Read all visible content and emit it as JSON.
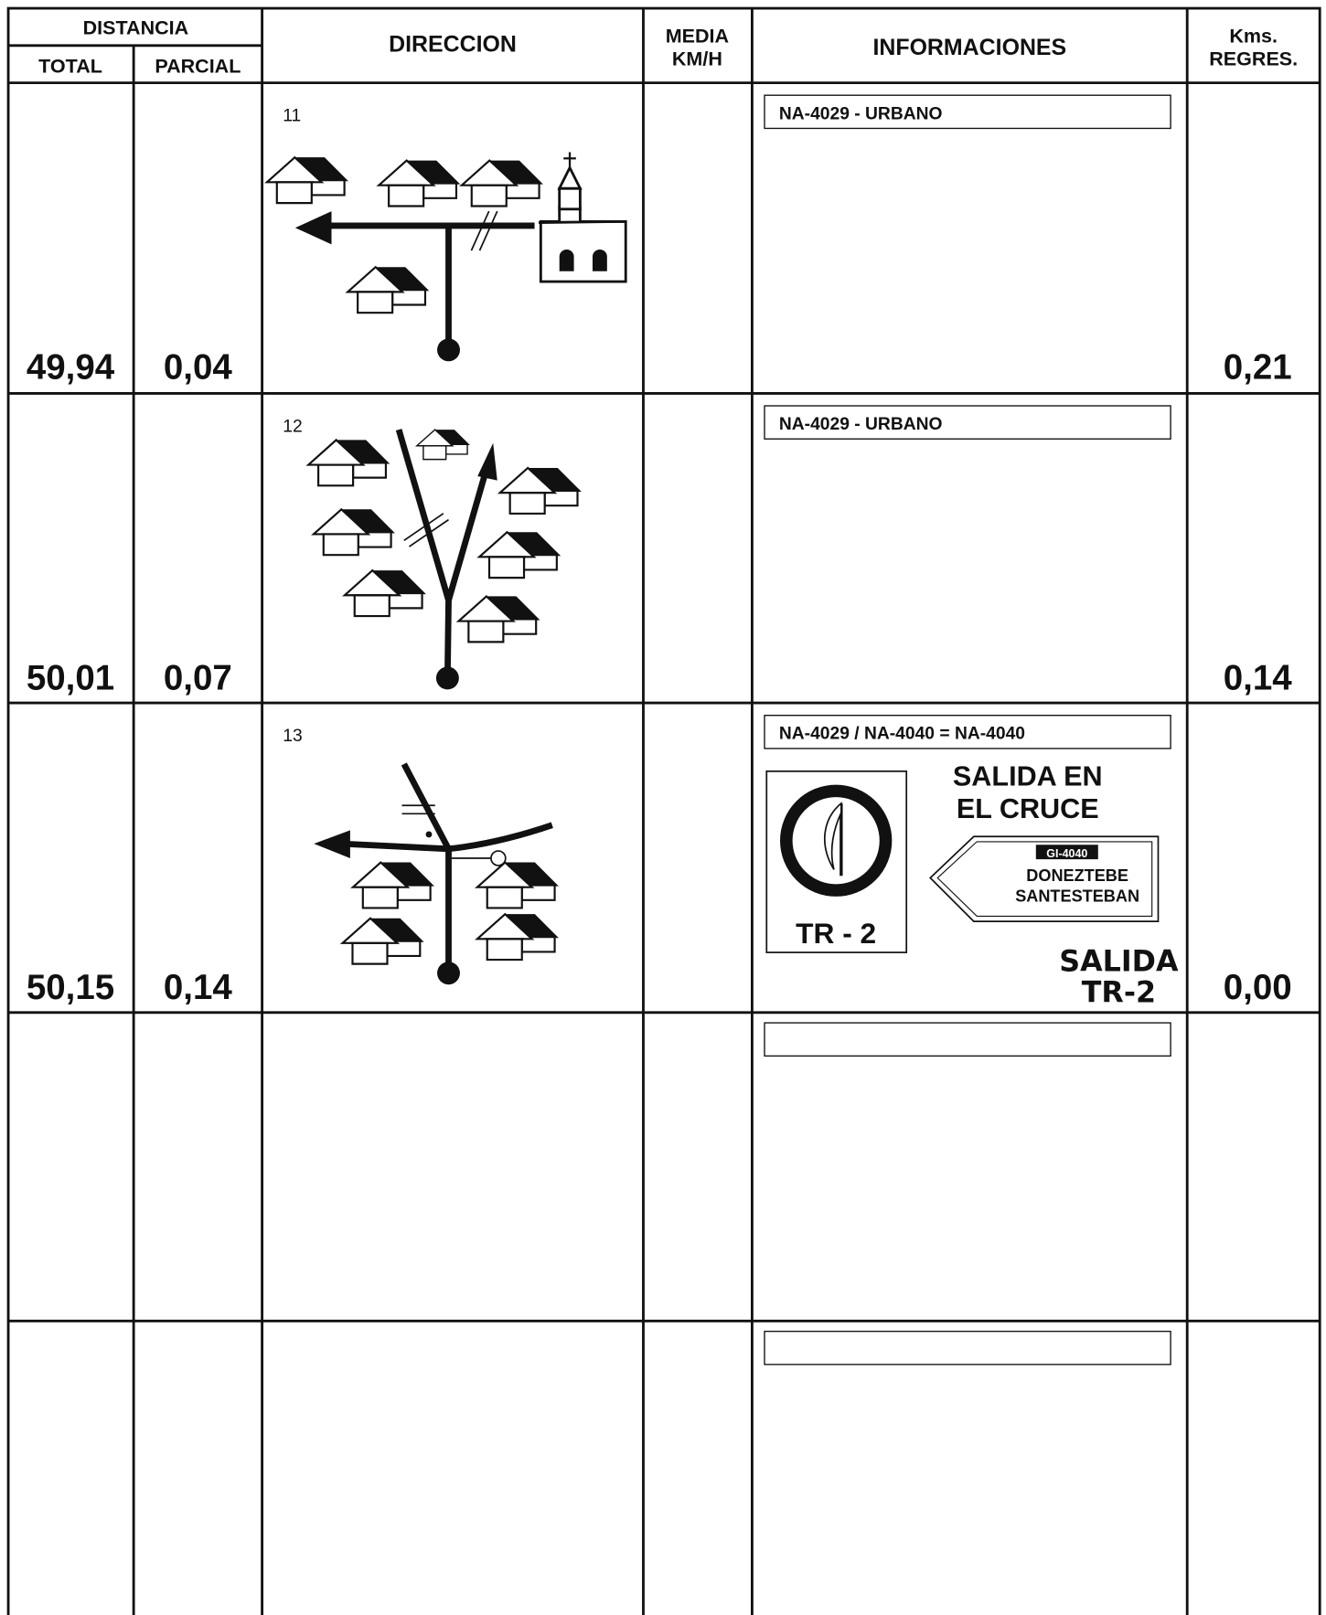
{
  "header": {
    "distancia": "DISTANCIA",
    "total": "TOTAL",
    "parcial": "PARCIAL",
    "direccion": "DIRECCION",
    "media": [
      "MEDIA",
      "KM/H"
    ],
    "informaciones": "INFORMACIONES",
    "kms": [
      "Kms.",
      "REGRES."
    ]
  },
  "rows": [
    {
      "number": "11",
      "total": "49,94",
      "parcial": "0,04",
      "info": "NA-4029 - URBANO",
      "kms": "0,21"
    },
    {
      "number": "12",
      "total": "50,01",
      "parcial": "0,07",
      "info": "NA-4029 - URBANO",
      "kms": "0,14"
    },
    {
      "number": "13",
      "total": "50,15",
      "parcial": "0,14",
      "info": "NA-4029 / NA-4040 = NA-4040",
      "kms": "0,00",
      "sign": "TR - 2",
      "notes": [
        "SALIDA EN",
        "EL CRUCE"
      ],
      "direction_sign": {
        "road": "GI-4040",
        "lines": [
          "DONEZTEBE",
          "SANTESTEBAN"
        ]
      },
      "exit": [
        "SALIDA",
        "TR-2"
      ]
    }
  ]
}
